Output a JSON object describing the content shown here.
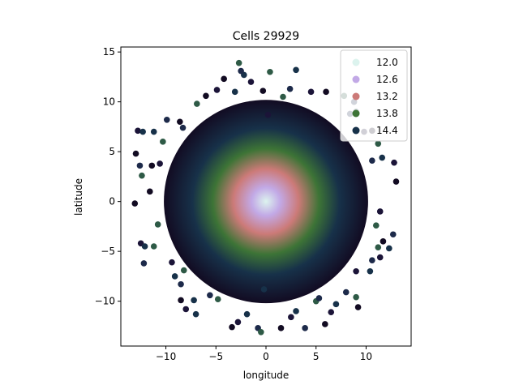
{
  "chart_data": {
    "type": "scatter",
    "title": "Cells 29929",
    "xlabel": "longitude",
    "ylabel": "latitude",
    "xlim": [
      -14.5,
      14.5
    ],
    "ylim": [
      -14.5,
      15.5
    ],
    "xticks": [
      -10,
      -5,
      0,
      5,
      10
    ],
    "yticks": [
      -10,
      -5,
      0,
      5,
      10,
      15
    ],
    "xtick_labels": [
      "−10",
      "−5",
      "0",
      "5",
      "10"
    ],
    "ytick_labels": [
      "−10",
      "−5",
      "0",
      "5",
      "10",
      "15"
    ],
    "grid": false,
    "legend_position": "top-right",
    "legend": [
      {
        "label": "12.0",
        "color": "#dcf3ee"
      },
      {
        "label": "12.6",
        "color": "#c2a9e6"
      },
      {
        "label": "13.2",
        "color": "#cc7a78"
      },
      {
        "label": "13.8",
        "color": "#3d7436"
      },
      {
        "label": "14.4",
        "color": "#173149"
      }
    ],
    "disk_points": {
      "count": 29929,
      "radius": 10.2
    },
    "outlier_points": [
      [
        -13.0,
        4.8
      ],
      [
        -12.8,
        7.1
      ],
      [
        -12.3,
        7.0
      ],
      [
        -12.6,
        3.6
      ],
      [
        -12.4,
        2.6
      ],
      [
        -13.1,
        -0.2
      ],
      [
        -12.5,
        -4.2
      ],
      [
        -12.1,
        -4.5
      ],
      [
        -12.2,
        -6.2
      ],
      [
        -11.2,
        -4.5
      ],
      [
        -11.4,
        3.6
      ],
      [
        -10.6,
        3.8
      ],
      [
        -11.2,
        7.0
      ],
      [
        -9.9,
        8.2
      ],
      [
        -10.3,
        6.0
      ],
      [
        -8.6,
        8.0
      ],
      [
        -9.4,
        -6.1
      ],
      [
        -9.1,
        -7.5
      ],
      [
        -8.5,
        -8.3
      ],
      [
        -8.2,
        -6.9
      ],
      [
        -8.5,
        -9.9
      ],
      [
        -8.0,
        -10.8
      ],
      [
        -7.0,
        -11.3
      ],
      [
        -5.6,
        -9.4
      ],
      [
        -4.8,
        -9.8
      ],
      [
        -3.4,
        -12.6
      ],
      [
        -2.8,
        -12.1
      ],
      [
        -1.9,
        -11.3
      ],
      [
        -0.8,
        -12.7
      ],
      [
        -0.5,
        -13.1
      ],
      [
        1.5,
        -12.7
      ],
      [
        2.5,
        -11.6
      ],
      [
        3.0,
        -11.0
      ],
      [
        3.9,
        -12.7
      ],
      [
        5.0,
        -10.0
      ],
      [
        5.9,
        -12.3
      ],
      [
        6.5,
        -11.1
      ],
      [
        7.0,
        -10.3
      ],
      [
        8.0,
        -9.1
      ],
      [
        9.0,
        -9.6
      ],
      [
        9.2,
        -10.6
      ],
      [
        9.0,
        -7.0
      ],
      [
        10.4,
        -7.0
      ],
      [
        10.6,
        -5.9
      ],
      [
        11.2,
        -4.6
      ],
      [
        11.7,
        -4.0
      ],
      [
        11.4,
        -5.6
      ],
      [
        12.3,
        -4.7
      ],
      [
        12.7,
        -3.3
      ],
      [
        11.0,
        -2.4
      ],
      [
        13.0,
        2.0
      ],
      [
        12.8,
        3.9
      ],
      [
        11.6,
        4.4
      ],
      [
        10.6,
        4.1
      ],
      [
        11.2,
        5.8
      ],
      [
        10.6,
        7.1
      ],
      [
        9.8,
        7.0
      ],
      [
        9.0,
        9.0
      ],
      [
        8.8,
        10.0
      ],
      [
        7.8,
        10.6
      ],
      [
        6.0,
        11.0
      ],
      [
        4.5,
        11.0
      ],
      [
        3.0,
        13.2
      ],
      [
        2.4,
        11.3
      ],
      [
        0.4,
        13.0
      ],
      [
        -0.3,
        11.1
      ],
      [
        -1.5,
        12.0
      ],
      [
        -2.2,
        12.7
      ],
      [
        -2.5,
        13.1
      ],
      [
        -2.7,
        13.9
      ],
      [
        -4.2,
        12.3
      ],
      [
        -4.9,
        11.2
      ],
      [
        -3.1,
        11.0
      ],
      [
        -8.3,
        7.4
      ],
      [
        1.7,
        10.5
      ],
      [
        -11.6,
        1.0
      ],
      [
        11.4,
        -1.0
      ],
      [
        -7.2,
        -9.9
      ],
      [
        8.4,
        8.8
      ],
      [
        -6.9,
        9.8
      ],
      [
        -6.0,
        10.6
      ],
      [
        0.2,
        8.7
      ],
      [
        -0.2,
        -8.8
      ],
      [
        5.3,
        -9.7
      ],
      [
        -10.8,
        -2.3
      ]
    ]
  }
}
